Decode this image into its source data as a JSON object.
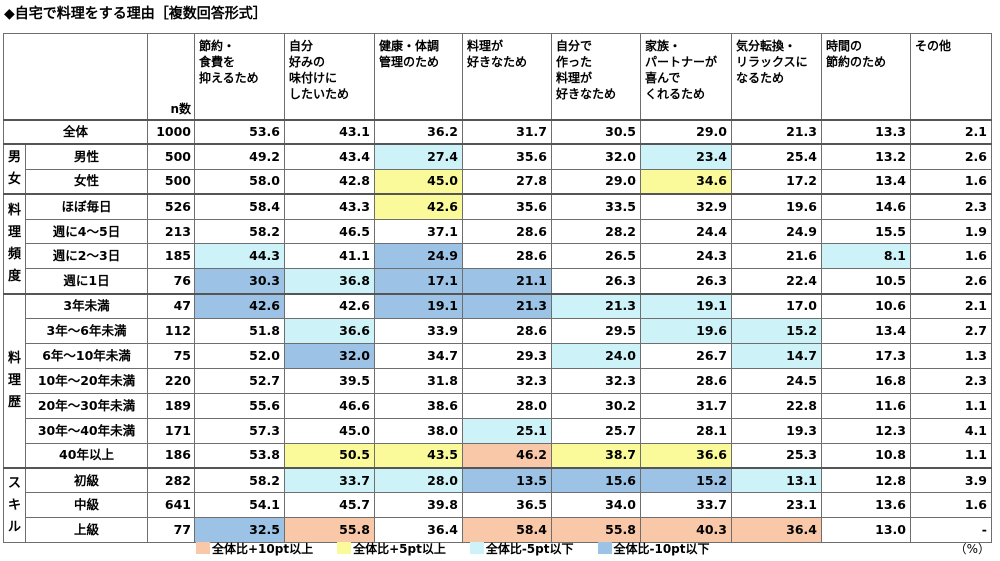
{
  "title": "◆自宅で料理をする理由［複数回答形式］",
  "unit": "（%）",
  "legend": [
    {
      "label": "全体比+10pt以上",
      "color": "#f8c8a8"
    },
    {
      "label": "全体比+5pt以上",
      "color": "#fafa9a"
    },
    {
      "label": "全体比-5pt以下",
      "color": "#cdf3f8"
    },
    {
      "label": "全体比-10pt以下",
      "color": "#9cc3e6"
    }
  ],
  "chart_data": {
    "type": "table",
    "n_label": "n数",
    "columns": [
      "節約・\n食費を\n抑えるため",
      "自分\n好みの\n味付けに\nしたいため",
      "健康・体調\n管理のため",
      "料理が\n好きなため",
      "自分で\n作った\n料理が\n好きなため",
      "家族・\nパートナーが\n喜んで\nくれるため",
      "気分転換・\nリラックスに\nなるため",
      "時間の\n節約のため",
      "その他"
    ],
    "groups": [
      {
        "label": "",
        "rows": [
          {
            "label": "全体",
            "n": 1000,
            "values": [
              "53.6",
              "43.1",
              "36.2",
              "31.7",
              "30.5",
              "29.0",
              "21.3",
              "13.3",
              "2.1"
            ],
            "highlights": [
              "",
              "",
              "",
              "",
              "",
              "",
              "",
              "",
              ""
            ]
          }
        ]
      },
      {
        "label": "男女",
        "rows": [
          {
            "label": "男性",
            "n": 500,
            "values": [
              "49.2",
              "43.4",
              "27.4",
              "35.6",
              "32.0",
              "23.4",
              "25.4",
              "13.2",
              "2.6"
            ],
            "highlights": [
              "",
              "",
              "m5",
              "",
              "",
              "m5",
              "",
              "",
              ""
            ]
          },
          {
            "label": "女性",
            "n": 500,
            "values": [
              "58.0",
              "42.8",
              "45.0",
              "27.8",
              "29.0",
              "34.6",
              "17.2",
              "13.4",
              "1.6"
            ],
            "highlights": [
              "",
              "",
              "p5",
              "",
              "",
              "p5",
              "",
              "",
              ""
            ]
          }
        ]
      },
      {
        "label": "料理頻度",
        "rows": [
          {
            "label": "ほぼ毎日",
            "n": 526,
            "values": [
              "58.4",
              "43.3",
              "42.6",
              "35.6",
              "33.5",
              "32.9",
              "19.6",
              "14.6",
              "2.3"
            ],
            "highlights": [
              "",
              "",
              "p5",
              "",
              "",
              "",
              "",
              "",
              ""
            ]
          },
          {
            "label": "週に4～5日",
            "n": 213,
            "values": [
              "58.2",
              "46.5",
              "37.1",
              "28.6",
              "28.2",
              "24.4",
              "24.9",
              "15.5",
              "1.9"
            ],
            "highlights": [
              "",
              "",
              "",
              "",
              "",
              "",
              "",
              "",
              ""
            ]
          },
          {
            "label": "週に2～3日",
            "n": 185,
            "values": [
              "44.3",
              "41.1",
              "24.9",
              "28.6",
              "26.5",
              "24.3",
              "21.6",
              "8.1",
              "1.6"
            ],
            "highlights": [
              "m5",
              "",
              "m10",
              "",
              "",
              "",
              "",
              "m5",
              ""
            ]
          },
          {
            "label": "週に1日",
            "n": 76,
            "values": [
              "30.3",
              "36.8",
              "17.1",
              "21.1",
              "26.3",
              "26.3",
              "22.4",
              "10.5",
              "2.6"
            ],
            "highlights": [
              "m10",
              "m5",
              "m10",
              "m10",
              "",
              "",
              "",
              "",
              ""
            ]
          }
        ]
      },
      {
        "label": "料理歴",
        "rows": [
          {
            "label": "3年未満",
            "n": 47,
            "values": [
              "42.6",
              "42.6",
              "19.1",
              "21.3",
              "21.3",
              "19.1",
              "17.0",
              "10.6",
              "2.1"
            ],
            "highlights": [
              "m10",
              "",
              "m10",
              "m10",
              "m5",
              "m5",
              "",
              "",
              ""
            ]
          },
          {
            "label": "3年～6年未満",
            "n": 112,
            "values": [
              "51.8",
              "36.6",
              "33.9",
              "28.6",
              "29.5",
              "19.6",
              "15.2",
              "13.4",
              "2.7"
            ],
            "highlights": [
              "",
              "m5",
              "",
              "",
              "",
              "m5",
              "m5",
              "",
              ""
            ]
          },
          {
            "label": "6年～10年未満",
            "n": 75,
            "values": [
              "52.0",
              "32.0",
              "34.7",
              "29.3",
              "24.0",
              "26.7",
              "14.7",
              "17.3",
              "1.3"
            ],
            "highlights": [
              "",
              "m10",
              "",
              "",
              "m5",
              "",
              "m5",
              "",
              ""
            ]
          },
          {
            "label": "10年～20年未満",
            "n": 220,
            "values": [
              "52.7",
              "39.5",
              "31.8",
              "32.3",
              "32.3",
              "28.6",
              "24.5",
              "16.8",
              "2.3"
            ],
            "highlights": [
              "",
              "",
              "",
              "",
              "",
              "",
              "",
              "",
              ""
            ]
          },
          {
            "label": "20年～30年未満",
            "n": 189,
            "values": [
              "55.6",
              "46.6",
              "38.6",
              "28.0",
              "30.2",
              "31.7",
              "22.8",
              "11.6",
              "1.1"
            ],
            "highlights": [
              "",
              "",
              "",
              "",
              "",
              "",
              "",
              "",
              ""
            ]
          },
          {
            "label": "30年～40年未満",
            "n": 171,
            "values": [
              "57.3",
              "45.0",
              "38.0",
              "25.1",
              "25.7",
              "28.1",
              "19.3",
              "12.3",
              "4.1"
            ],
            "highlights": [
              "",
              "",
              "",
              "m5",
              "",
              "",
              "",
              "",
              ""
            ]
          },
          {
            "label": "40年以上",
            "n": 186,
            "values": [
              "53.8",
              "50.5",
              "43.5",
              "46.2",
              "38.7",
              "36.6",
              "25.3",
              "10.8",
              "1.1"
            ],
            "highlights": [
              "",
              "p5",
              "p5",
              "p10",
              "p5",
              "p5",
              "",
              "",
              ""
            ]
          }
        ]
      },
      {
        "label": "スキル",
        "rows": [
          {
            "label": "初級",
            "n": 282,
            "values": [
              "58.2",
              "33.7",
              "28.0",
              "13.5",
              "15.6",
              "15.2",
              "13.1",
              "12.8",
              "3.9"
            ],
            "highlights": [
              "",
              "m5",
              "m5",
              "m10",
              "m10",
              "m10",
              "m5",
              "",
              ""
            ]
          },
          {
            "label": "中級",
            "n": 641,
            "values": [
              "54.1",
              "45.7",
              "39.8",
              "36.5",
              "34.0",
              "33.7",
              "23.1",
              "13.6",
              "1.6"
            ],
            "highlights": [
              "",
              "",
              "",
              "",
              "",
              "",
              "",
              "",
              ""
            ]
          },
          {
            "label": "上級",
            "n": 77,
            "values": [
              "32.5",
              "55.8",
              "36.4",
              "58.4",
              "55.8",
              "40.3",
              "36.4",
              "13.0",
              "-"
            ],
            "highlights": [
              "m10",
              "p10",
              "",
              "p10",
              "p10",
              "p10",
              "p10",
              "",
              ""
            ]
          }
        ]
      }
    ]
  }
}
